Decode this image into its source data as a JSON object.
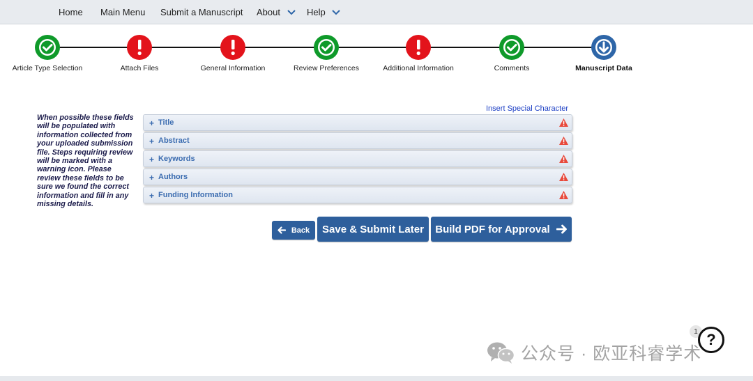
{
  "nav": {
    "items": [
      {
        "label": "Home"
      },
      {
        "label": "Main Menu"
      },
      {
        "label": "Submit a Manuscript"
      },
      {
        "label": "About"
      },
      {
        "label": "Help"
      }
    ]
  },
  "steps": [
    {
      "label": "Article Type Selection",
      "state": "complete"
    },
    {
      "label": "Attach Files",
      "state": "warning"
    },
    {
      "label": "General Information",
      "state": "warning"
    },
    {
      "label": "Review Preferences",
      "state": "complete"
    },
    {
      "label": "Additional Information",
      "state": "warning"
    },
    {
      "label": "Comments",
      "state": "complete"
    },
    {
      "label": "Manuscript Data",
      "state": "current"
    }
  ],
  "help_note": "When possible these fields will be populated with information collected from your uploaded submission file. Steps requiring review will be marked with a warning icon. Please review these fields to be sure we found the correct information and fill in any missing details.",
  "special_character_link": "Insert Special Character",
  "sections": [
    {
      "title": "Title",
      "icon": "warning-icon"
    },
    {
      "title": "Abstract",
      "icon": "warning-icon"
    },
    {
      "title": "Keywords",
      "icon": "warning-icon"
    },
    {
      "title": "Authors",
      "icon": "warning-icon"
    },
    {
      "title": "Funding Information",
      "icon": "warning-icon"
    }
  ],
  "buttons": {
    "back": "Back",
    "save": "Save & Submit Later",
    "build": "Build PDF for Approval"
  },
  "help_widget": {
    "badge": "1",
    "symbol": "?"
  },
  "watermark": "公众号 · 欧亚科睿学术",
  "colors": {
    "complete": "#0f9a2a",
    "warning": "#e3131b",
    "current": "#2e66a8",
    "button": "#2e5f9c",
    "section_text": "#3b6cb0"
  }
}
